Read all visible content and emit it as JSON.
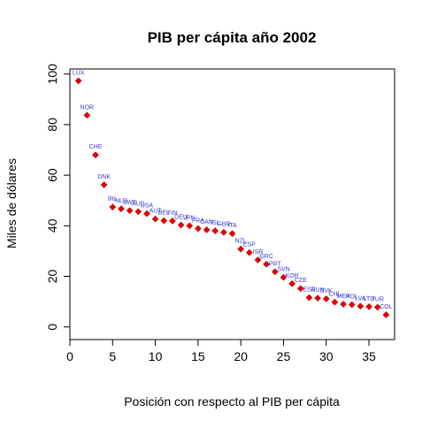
{
  "chart_data": {
    "type": "scatter",
    "title": "PIB per cápita año 2002",
    "xlabel": "Posición con respecto al PIB per cápita",
    "ylabel": "Miles de dólares",
    "xlim": [
      0,
      38
    ],
    "ylim": [
      -5,
      102
    ],
    "xticks": [
      0,
      5,
      10,
      15,
      20,
      25,
      30,
      35
    ],
    "yticks": [
      0,
      20,
      40,
      60,
      80,
      100
    ],
    "grid": false,
    "points": [
      {
        "x": 1,
        "y": 97.3,
        "label": "LUX"
      },
      {
        "x": 2,
        "y": 83.7,
        "label": "NOR"
      },
      {
        "x": 3,
        "y": 68.0,
        "label": "CHE"
      },
      {
        "x": 4,
        "y": 56.2,
        "label": "DNK"
      },
      {
        "x": 5,
        "y": 47.4,
        "label": "IRL"
      },
      {
        "x": 6,
        "y": 46.7,
        "label": "NLD"
      },
      {
        "x": 7,
        "y": 46.0,
        "label": "SWE"
      },
      {
        "x": 8,
        "y": 45.6,
        "label": "AUS"
      },
      {
        "x": 9,
        "y": 44.8,
        "label": "USA"
      },
      {
        "x": 10,
        "y": 42.7,
        "label": "AUT"
      },
      {
        "x": 11,
        "y": 42.0,
        "label": "BEL"
      },
      {
        "x": 12,
        "y": 41.9,
        "label": "FIN"
      },
      {
        "x": 13,
        "y": 40.3,
        "label": "DEU"
      },
      {
        "x": 14,
        "y": 40.0,
        "label": "JPN"
      },
      {
        "x": 15,
        "y": 38.9,
        "label": "FRA"
      },
      {
        "x": 16,
        "y": 38.4,
        "label": "CAN"
      },
      {
        "x": 17,
        "y": 38.0,
        "label": "ISL"
      },
      {
        "x": 18,
        "y": 37.4,
        "label": "GBR"
      },
      {
        "x": 19,
        "y": 36.9,
        "label": "ITA"
      },
      {
        "x": 20,
        "y": 30.8,
        "label": "NZL"
      },
      {
        "x": 21,
        "y": 29.4,
        "label": "ESP"
      },
      {
        "x": 22,
        "y": 26.5,
        "label": "ISR"
      },
      {
        "x": 23,
        "y": 24.8,
        "label": "GRC"
      },
      {
        "x": 24,
        "y": 21.8,
        "label": "PRT"
      },
      {
        "x": 25,
        "y": 19.6,
        "label": "SVN"
      },
      {
        "x": 26,
        "y": 17.1,
        "label": "KOR"
      },
      {
        "x": 27,
        "y": 15.2,
        "label": "CZE"
      },
      {
        "x": 28,
        "y": 11.6,
        "label": "EST"
      },
      {
        "x": 29,
        "y": 11.4,
        "label": "HUN"
      },
      {
        "x": 30,
        "y": 11.1,
        "label": "SVK"
      },
      {
        "x": 31,
        "y": 9.8,
        "label": "CHL"
      },
      {
        "x": 32,
        "y": 9.0,
        "label": "MEX"
      },
      {
        "x": 33,
        "y": 8.8,
        "label": "POL"
      },
      {
        "x": 34,
        "y": 8.2,
        "label": "LVA"
      },
      {
        "x": 35,
        "y": 8.0,
        "label": "LTU"
      },
      {
        "x": 36,
        "y": 7.8,
        "label": "TUR"
      },
      {
        "x": 37,
        "y": 4.8,
        "label": "COL"
      }
    ]
  }
}
